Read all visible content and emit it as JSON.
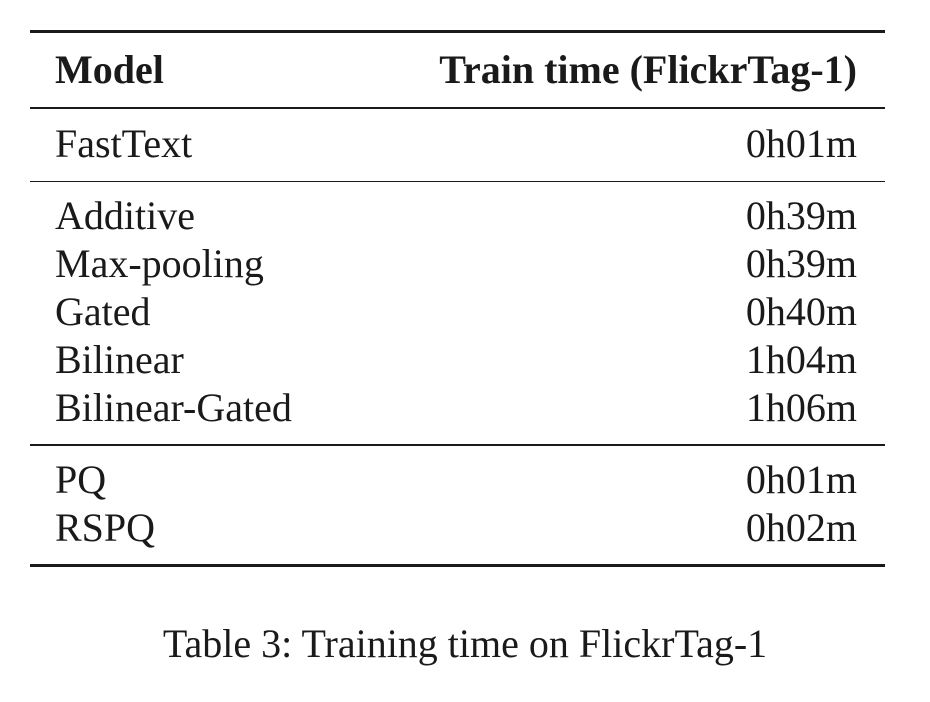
{
  "table": {
    "headers": {
      "model": "Model",
      "time": "Train time (FlickrTag-1)"
    },
    "sections": [
      {
        "rows": [
          {
            "model": "FastText",
            "time": "0h01m"
          }
        ]
      },
      {
        "rows": [
          {
            "model": "Additive",
            "time": "0h39m"
          },
          {
            "model": "Max-pooling",
            "time": "0h39m"
          },
          {
            "model": "Gated",
            "time": "0h40m"
          },
          {
            "model": "Bilinear",
            "time": "1h04m"
          },
          {
            "model": "Bilinear-Gated",
            "time": "1h06m"
          }
        ]
      },
      {
        "rows": [
          {
            "model": "PQ",
            "time": "0h01m"
          },
          {
            "model": "RSPQ",
            "time": "0h02m"
          }
        ]
      }
    ]
  },
  "caption": "Table 3: Training time on FlickrTag-1"
}
